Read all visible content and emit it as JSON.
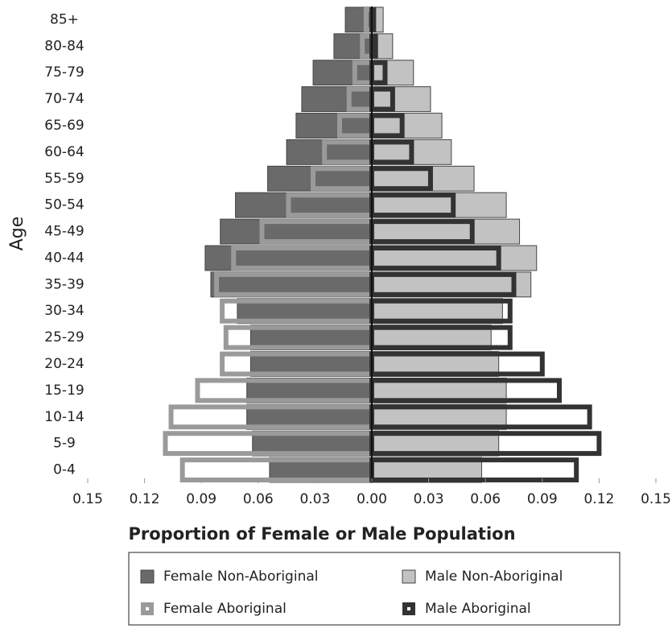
{
  "chart_data": {
    "type": "pyramid",
    "ylabel": "Age",
    "xlabel": "Proportion of Female or Male Population",
    "categories": [
      "0-4",
      "5-9",
      "10-14",
      "15-19",
      "20-24",
      "25-29",
      "30-34",
      "35-39",
      "40-44",
      "45-49",
      "50-54",
      "55-59",
      "60-64",
      "65-69",
      "70-74",
      "75-79",
      "80-84",
      "85+"
    ],
    "series": [
      {
        "name": "Female Non-Aboriginal",
        "side": "left",
        "style": "fill",
        "color": "#6a6a6a",
        "values": [
          0.054,
          0.063,
          0.066,
          0.066,
          0.064,
          0.064,
          0.071,
          0.085,
          0.088,
          0.08,
          0.072,
          0.055,
          0.045,
          0.04,
          0.037,
          0.031,
          0.02,
          0.014
        ]
      },
      {
        "name": "Male Non-Aboriginal",
        "side": "right",
        "style": "fill",
        "color": "#c2c2c2",
        "values": [
          0.058,
          0.067,
          0.071,
          0.071,
          0.067,
          0.063,
          0.069,
          0.084,
          0.087,
          0.078,
          0.071,
          0.054,
          0.042,
          0.037,
          0.031,
          0.022,
          0.011,
          0.006
        ]
      },
      {
        "name": "Female Aboriginal",
        "side": "left",
        "style": "outline",
        "color": "#9a9a9a",
        "values": [
          0.1,
          0.109,
          0.106,
          0.092,
          0.079,
          0.077,
          0.079,
          0.082,
          0.073,
          0.058,
          0.044,
          0.031,
          0.025,
          0.017,
          0.012,
          0.009,
          0.005,
          0.003
        ]
      },
      {
        "name": "Male Aboriginal",
        "side": "right",
        "style": "outline",
        "color": "#333333",
        "values": [
          0.108,
          0.12,
          0.115,
          0.099,
          0.09,
          0.073,
          0.073,
          0.075,
          0.067,
          0.053,
          0.043,
          0.031,
          0.021,
          0.016,
          0.011,
          0.007,
          0.002,
          0.001
        ]
      }
    ],
    "xlim": [
      -0.15,
      0.15
    ],
    "xticks": [
      {
        "value": -0.15,
        "label": "0.15"
      },
      {
        "value": -0.12,
        "label": "0.12"
      },
      {
        "value": -0.09,
        "label": "0.09"
      },
      {
        "value": -0.06,
        "label": "0.06"
      },
      {
        "value": -0.03,
        "label": "0.03"
      },
      {
        "value": 0,
        "label": "0.00"
      },
      0.03,
      0.06,
      0.09,
      0.12,
      0.15
    ],
    "legend": "bottom"
  }
}
